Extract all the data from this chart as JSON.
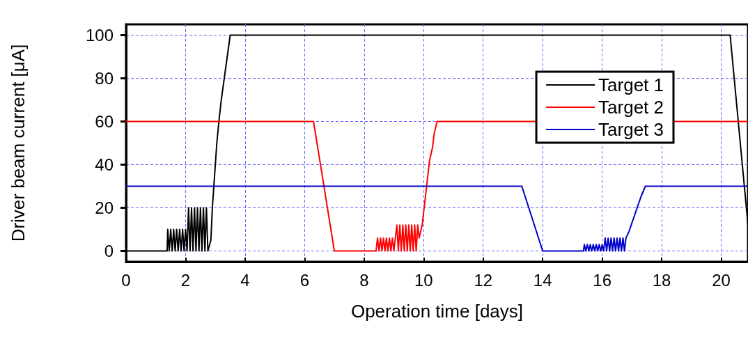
{
  "chart_data": {
    "type": "line",
    "xlabel": "Operation time [days]",
    "ylabel": "Driver beam current [μA]",
    "xlim": [
      0,
      20.9
    ],
    "xticks": [
      0,
      2,
      4,
      6,
      8,
      10,
      12,
      14,
      16,
      18,
      20
    ],
    "ylim": [
      -5,
      105
    ],
    "yticks": [
      0,
      20,
      40,
      60,
      80,
      100
    ],
    "grid": true,
    "legend": "top right",
    "marker": "none",
    "line_style": "solid",
    "series": [
      {
        "name": "Target 1",
        "color": "#000000",
        "x": [
          0,
          1.38,
          1.4,
          1.45,
          1.5,
          1.55,
          1.6,
          1.65,
          1.7,
          1.75,
          1.8,
          1.85,
          1.9,
          1.95,
          2.0,
          2.05,
          2.1,
          2.15,
          2.2,
          2.25,
          2.3,
          2.35,
          2.4,
          2.45,
          2.5,
          2.55,
          2.6,
          2.65,
          2.7,
          2.75,
          2.85,
          2.9,
          2.95,
          3.0,
          3.05,
          3.12,
          3.2,
          3.3,
          3.4,
          3.5,
          20.3,
          20.9
        ],
        "values": [
          0,
          0,
          10,
          0,
          10,
          0,
          10,
          0,
          10,
          0,
          10,
          0,
          10,
          0,
          10,
          0,
          20,
          0,
          20,
          0,
          20,
          0,
          20,
          0,
          20,
          0,
          20,
          0,
          20,
          0,
          5,
          20,
          30,
          40,
          50,
          60,
          70,
          80,
          90,
          100,
          100,
          12
        ]
      },
      {
        "name": "Target 2",
        "color": "#ff0000",
        "x": [
          0,
          6.3,
          7.0,
          8.4,
          8.45,
          8.5,
          8.55,
          8.6,
          8.65,
          8.7,
          8.75,
          8.8,
          8.85,
          8.9,
          8.95,
          9.0,
          9.05,
          9.1,
          9.15,
          9.2,
          9.25,
          9.3,
          9.35,
          9.4,
          9.45,
          9.5,
          9.55,
          9.6,
          9.65,
          9.7,
          9.75,
          9.8,
          9.85,
          9.95,
          10.0,
          10.05,
          10.1,
          10.15,
          10.2,
          10.3,
          10.35,
          10.45,
          20.9
        ],
        "values": [
          60,
          60,
          0,
          0,
          6,
          0,
          6,
          0,
          6,
          0,
          6,
          0,
          6,
          0,
          6,
          0,
          6,
          12,
          0,
          12,
          0,
          12,
          0,
          12,
          0,
          12,
          0,
          12,
          0,
          12,
          0,
          12,
          6,
          12,
          18,
          24,
          30,
          36,
          42,
          48,
          54,
          60,
          60
        ]
      },
      {
        "name": "Target 3",
        "color": "#0000cc",
        "x": [
          0,
          13.3,
          14.0,
          15.37,
          15.4,
          15.45,
          15.5,
          15.55,
          15.6,
          15.65,
          15.7,
          15.75,
          15.8,
          15.85,
          15.9,
          15.95,
          16.0,
          16.05,
          16.1,
          16.15,
          16.2,
          16.25,
          16.3,
          16.35,
          16.4,
          16.45,
          16.5,
          16.55,
          16.6,
          16.65,
          16.7,
          16.75,
          16.8,
          16.9,
          17.0,
          17.1,
          17.2,
          17.3,
          17.45,
          20.9
        ],
        "values": [
          30,
          30,
          0,
          0,
          3,
          0,
          3,
          0,
          3,
          0,
          3,
          0,
          3,
          0,
          3,
          0,
          3,
          0,
          6,
          0,
          6,
          0,
          6,
          0,
          6,
          0,
          6,
          0,
          6,
          0,
          6,
          0,
          6,
          9,
          13,
          17,
          21,
          25,
          30,
          30
        ]
      }
    ]
  }
}
